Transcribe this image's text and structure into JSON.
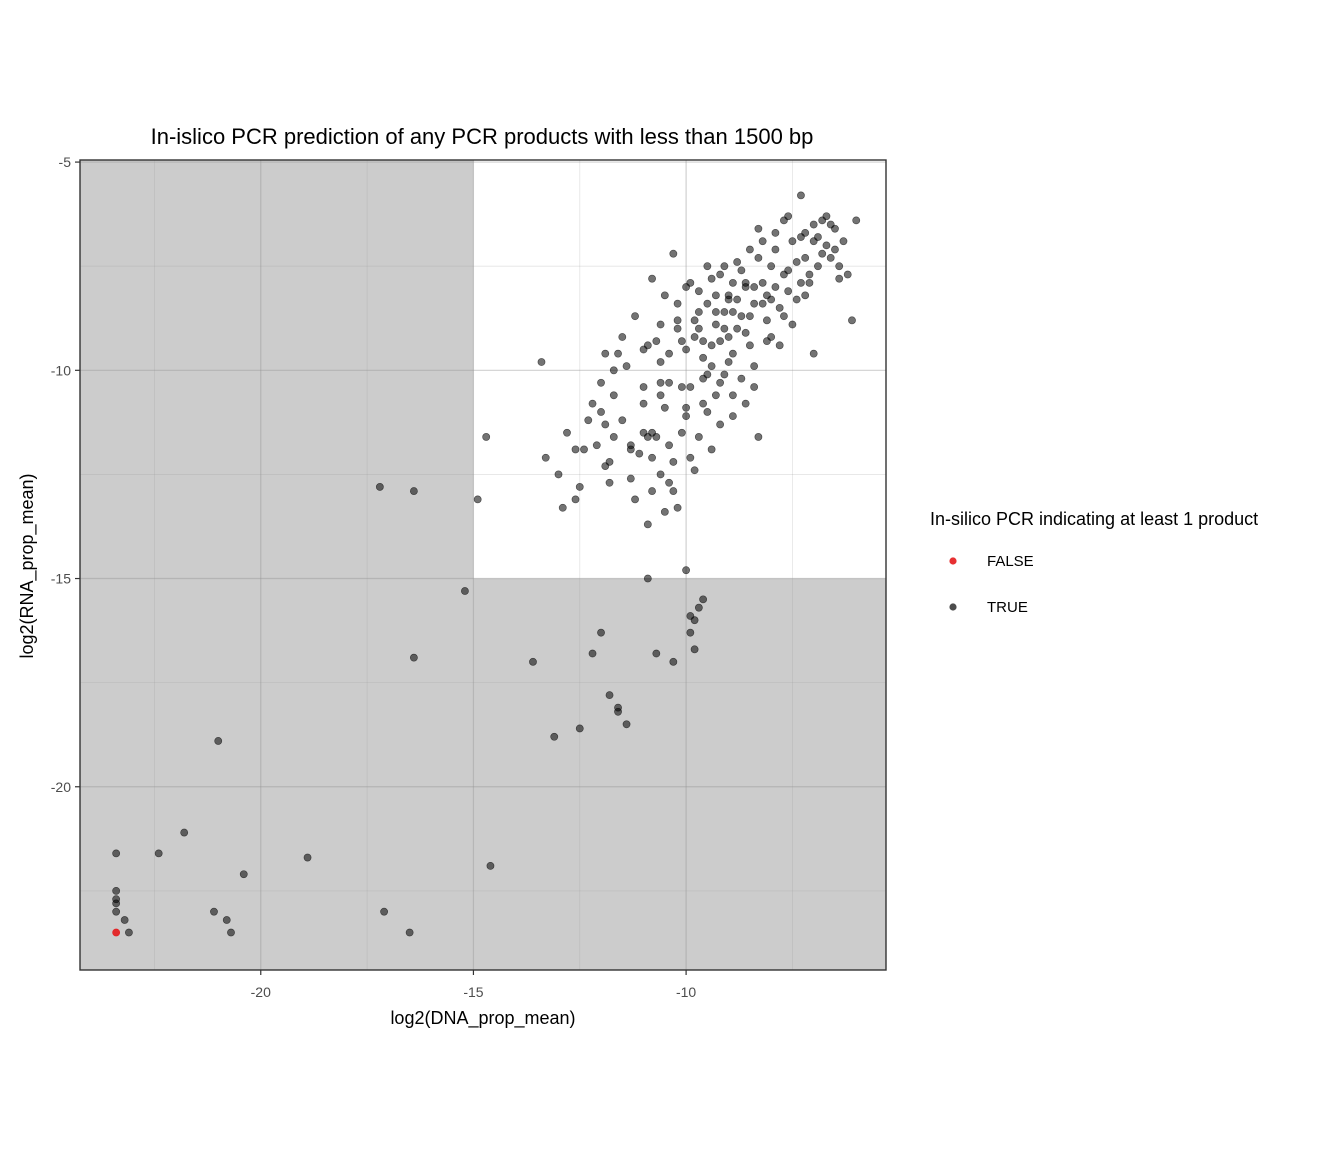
{
  "chart_data": {
    "type": "scatter",
    "title": "In-islico PCR prediction of any PCR products with less than 1500 bp",
    "xlabel": "log2(DNA_prop_mean)",
    "ylabel": "log2(RNA_prop_mean)",
    "xlim": [
      -24.25,
      -5.3
    ],
    "ylim": [
      -24.4,
      -4.95
    ],
    "x_ticks": [
      -20,
      -15,
      -10
    ],
    "y_ticks": [
      -5,
      -10,
      -15,
      -20
    ],
    "x_tick_labels": [
      "-20",
      "-15",
      "-10"
    ],
    "y_tick_labels": [
      "-5",
      "-10",
      "-15",
      "-20"
    ],
    "grid": true,
    "shaded_threshold": {
      "x": -15,
      "y": -15
    },
    "shade_color": "#cccccc",
    "legend": {
      "title": "In-silico PCR indicating at least 1 product",
      "position": "right",
      "entries": [
        {
          "label": "FALSE",
          "color": "#e41a1c"
        },
        {
          "label": "TRUE",
          "color": "#000000"
        }
      ]
    },
    "series": [
      {
        "name": "FALSE",
        "color": "#e41a1c",
        "points": [
          [
            -23.4,
            -23.5
          ]
        ]
      },
      {
        "name": "TRUE",
        "color": "#000000",
        "points": [
          [
            -17.2,
            -12.8
          ],
          [
            -16.4,
            -12.9
          ],
          [
            -14.7,
            -11.6
          ],
          [
            -14.9,
            -13.1
          ],
          [
            -15.2,
            -15.3
          ],
          [
            -16.4,
            -16.9
          ],
          [
            -21.0,
            -18.9
          ],
          [
            -21.8,
            -21.1
          ],
          [
            -22.4,
            -21.6
          ],
          [
            -23.4,
            -21.6
          ],
          [
            -18.9,
            -21.7
          ],
          [
            -20.4,
            -22.1
          ],
          [
            -23.4,
            -22.5
          ],
          [
            -23.4,
            -22.8
          ],
          [
            -23.4,
            -22.7
          ],
          [
            -23.4,
            -23.0
          ],
          [
            -23.2,
            -23.2
          ],
          [
            -21.1,
            -23.0
          ],
          [
            -20.8,
            -23.2
          ],
          [
            -20.7,
            -23.5
          ],
          [
            -23.1,
            -23.5
          ],
          [
            -17.1,
            -23.0
          ],
          [
            -16.5,
            -23.5
          ],
          [
            -14.6,
            -21.9
          ],
          [
            -13.6,
            -17.0
          ],
          [
            -13.1,
            -18.8
          ],
          [
            -12.5,
            -18.6
          ],
          [
            -12.2,
            -16.8
          ],
          [
            -12.0,
            -16.3
          ],
          [
            -11.8,
            -17.8
          ],
          [
            -11.6,
            -18.1
          ],
          [
            -11.6,
            -18.2
          ],
          [
            -11.4,
            -18.5
          ],
          [
            -10.9,
            -15.0
          ],
          [
            -10.7,
            -16.8
          ],
          [
            -10.3,
            -17.0
          ],
          [
            -10.0,
            -14.8
          ],
          [
            -9.9,
            -15.9
          ],
          [
            -9.8,
            -16.0
          ],
          [
            -9.9,
            -16.3
          ],
          [
            -9.8,
            -16.7
          ],
          [
            -9.7,
            -15.7
          ],
          [
            -9.6,
            -15.5
          ],
          [
            -13.4,
            -9.8
          ],
          [
            -13.3,
            -12.1
          ],
          [
            -13.0,
            -12.5
          ],
          [
            -12.8,
            -11.5
          ],
          [
            -12.9,
            -13.3
          ],
          [
            -12.6,
            -11.9
          ],
          [
            -12.4,
            -11.9
          ],
          [
            -12.5,
            -12.8
          ],
          [
            -12.3,
            -11.2
          ],
          [
            -12.2,
            -10.8
          ],
          [
            -12.0,
            -10.3
          ],
          [
            -11.9,
            -11.3
          ],
          [
            -12.1,
            -11.8
          ],
          [
            -11.9,
            -12.3
          ],
          [
            -11.8,
            -12.7
          ],
          [
            -11.7,
            -11.6
          ],
          [
            -11.7,
            -10.6
          ],
          [
            -11.6,
            -9.6
          ],
          [
            -11.5,
            -11.2
          ],
          [
            -11.3,
            -11.9
          ],
          [
            -11.3,
            -12.6
          ],
          [
            -11.2,
            -13.1
          ],
          [
            -11.1,
            -12.0
          ],
          [
            -11.0,
            -11.5
          ],
          [
            -11.0,
            -10.4
          ],
          [
            -10.9,
            -9.4
          ],
          [
            -10.8,
            -11.5
          ],
          [
            -10.8,
            -12.1
          ],
          [
            -10.7,
            -11.6
          ],
          [
            -10.6,
            -12.5
          ],
          [
            -10.5,
            -13.4
          ],
          [
            -10.9,
            -13.7
          ],
          [
            -10.8,
            -12.9
          ],
          [
            -10.6,
            -10.6
          ],
          [
            -10.5,
            -10.9
          ],
          [
            -10.4,
            -11.8
          ],
          [
            -10.3,
            -12.2
          ],
          [
            -10.3,
            -12.9
          ],
          [
            -10.2,
            -13.3
          ],
          [
            -10.1,
            -11.5
          ],
          [
            -10.1,
            -10.4
          ],
          [
            -10.0,
            -9.5
          ],
          [
            -10.0,
            -11.1
          ],
          [
            -9.9,
            -12.1
          ],
          [
            -9.8,
            -12.4
          ],
          [
            -9.7,
            -11.6
          ],
          [
            -9.6,
            -10.8
          ],
          [
            -9.5,
            -10.1
          ],
          [
            -9.4,
            -11.9
          ],
          [
            -9.3,
            -10.6
          ],
          [
            -9.2,
            -11.3
          ],
          [
            -9.1,
            -10.1
          ],
          [
            -9.0,
            -9.8
          ],
          [
            -8.9,
            -10.6
          ],
          [
            -8.9,
            -11.1
          ],
          [
            -8.7,
            -10.2
          ],
          [
            -8.6,
            -10.8
          ],
          [
            -8.4,
            -10.4
          ],
          [
            -8.3,
            -11.6
          ],
          [
            -10.7,
            -9.3
          ],
          [
            -10.6,
            -8.9
          ],
          [
            -10.5,
            -8.2
          ],
          [
            -10.3,
            -7.2
          ],
          [
            -10.2,
            -8.8
          ],
          [
            -10.0,
            -8.0
          ],
          [
            -9.8,
            -9.2
          ],
          [
            -9.7,
            -8.6
          ],
          [
            -9.6,
            -9.7
          ],
          [
            -9.5,
            -8.4
          ],
          [
            -9.4,
            -7.8
          ],
          [
            -9.3,
            -8.9
          ],
          [
            -9.2,
            -9.3
          ],
          [
            -9.1,
            -7.5
          ],
          [
            -9.0,
            -8.2
          ],
          [
            -8.9,
            -8.6
          ],
          [
            -8.8,
            -9.0
          ],
          [
            -8.7,
            -7.6
          ],
          [
            -8.6,
            -8.0
          ],
          [
            -8.5,
            -9.4
          ],
          [
            -8.4,
            -8.4
          ],
          [
            -8.3,
            -7.3
          ],
          [
            -8.2,
            -7.9
          ],
          [
            -8.1,
            -8.8
          ],
          [
            -8.0,
            -9.2
          ],
          [
            -7.9,
            -7.1
          ],
          [
            -7.8,
            -8.5
          ],
          [
            -7.7,
            -7.7
          ],
          [
            -7.6,
            -8.1
          ],
          [
            -7.5,
            -8.9
          ],
          [
            -7.4,
            -7.4
          ],
          [
            -7.3,
            -6.8
          ],
          [
            -7.2,
            -8.2
          ],
          [
            -7.1,
            -7.9
          ],
          [
            -7.0,
            -6.9
          ],
          [
            -6.9,
            -7.5
          ],
          [
            -6.8,
            -6.4
          ],
          [
            -6.7,
            -7.0
          ],
          [
            -6.6,
            -7.3
          ],
          [
            -6.5,
            -6.6
          ],
          [
            -6.4,
            -7.8
          ],
          [
            -6.3,
            -6.9
          ],
          [
            -6.2,
            -7.7
          ],
          [
            -6.0,
            -6.4
          ],
          [
            -6.1,
            -8.8
          ],
          [
            -7.0,
            -9.6
          ],
          [
            -7.8,
            -9.4
          ],
          [
            -7.3,
            -5.8
          ],
          [
            -7.6,
            -6.3
          ],
          [
            -8.2,
            -6.9
          ],
          [
            -8.5,
            -7.1
          ],
          [
            -8.8,
            -7.4
          ],
          [
            -9.2,
            -7.7
          ],
          [
            -9.5,
            -7.5
          ],
          [
            -9.9,
            -7.9
          ],
          [
            -10.2,
            -8.4
          ],
          [
            -10.8,
            -7.8
          ],
          [
            -11.2,
            -8.7
          ],
          [
            -11.5,
            -9.2
          ],
          [
            -11.7,
            -10.0
          ],
          [
            -11.0,
            -10.8
          ],
          [
            -11.4,
            -9.9
          ],
          [
            -11.9,
            -9.6
          ],
          [
            -10.6,
            -9.8
          ],
          [
            -10.4,
            -10.3
          ],
          [
            -9.9,
            -10.4
          ],
          [
            -9.6,
            -10.2
          ],
          [
            -9.4,
            -9.4
          ],
          [
            -9.1,
            -9.0
          ],
          [
            -8.8,
            -8.3
          ],
          [
            -8.5,
            -8.7
          ],
          [
            -8.2,
            -8.4
          ],
          [
            -7.9,
            -8.0
          ],
          [
            -7.6,
            -7.6
          ],
          [
            -7.2,
            -7.3
          ],
          [
            -6.9,
            -6.8
          ],
          [
            -6.6,
            -6.5
          ],
          [
            -7.5,
            -6.9
          ],
          [
            -8.0,
            -7.5
          ],
          [
            -8.6,
            -7.9
          ],
          [
            -9.0,
            -8.3
          ],
          [
            -9.3,
            -8.6
          ],
          [
            -9.7,
            -9.0
          ],
          [
            -10.1,
            -9.3
          ],
          [
            -10.4,
            -9.6
          ],
          [
            -8.4,
            -9.9
          ],
          [
            -8.1,
            -9.3
          ],
          [
            -7.7,
            -8.7
          ],
          [
            -7.4,
            -8.3
          ],
          [
            -7.1,
            -7.7
          ],
          [
            -6.8,
            -7.2
          ],
          [
            -6.5,
            -7.1
          ],
          [
            -8.9,
            -9.6
          ],
          [
            -9.2,
            -10.3
          ],
          [
            -9.5,
            -11.0
          ],
          [
            -10.9,
            -11.6
          ],
          [
            -11.8,
            -12.2
          ],
          [
            -12.0,
            -11.0
          ],
          [
            -10.4,
            -12.7
          ],
          [
            -9.7,
            -8.1
          ],
          [
            -8.3,
            -6.6
          ],
          [
            -7.9,
            -6.7
          ],
          [
            -7.0,
            -6.5
          ],
          [
            -6.7,
            -6.3
          ],
          [
            -7.7,
            -6.4
          ],
          [
            -8.1,
            -8.2
          ],
          [
            -8.7,
            -8.7
          ],
          [
            -9.0,
            -9.2
          ],
          [
            -9.3,
            -8.2
          ],
          [
            -9.8,
            -8.8
          ],
          [
            -10.2,
            -9.0
          ],
          [
            -10.6,
            -10.3
          ],
          [
            -11.0,
            -9.5
          ],
          [
            -9.6,
            -9.3
          ],
          [
            -8.6,
            -9.1
          ],
          [
            -7.3,
            -7.9
          ],
          [
            -6.4,
            -7.5
          ],
          [
            -7.2,
            -6.7
          ],
          [
            -8.0,
            -8.3
          ],
          [
            -8.9,
            -7.9
          ],
          [
            -9.4,
            -9.9
          ],
          [
            -10.0,
            -10.9
          ],
          [
            -11.3,
            -11.8
          ],
          [
            -12.6,
            -13.1
          ],
          [
            -9.1,
            -8.6
          ],
          [
            -8.4,
            -8.0
          ]
        ]
      }
    ]
  }
}
